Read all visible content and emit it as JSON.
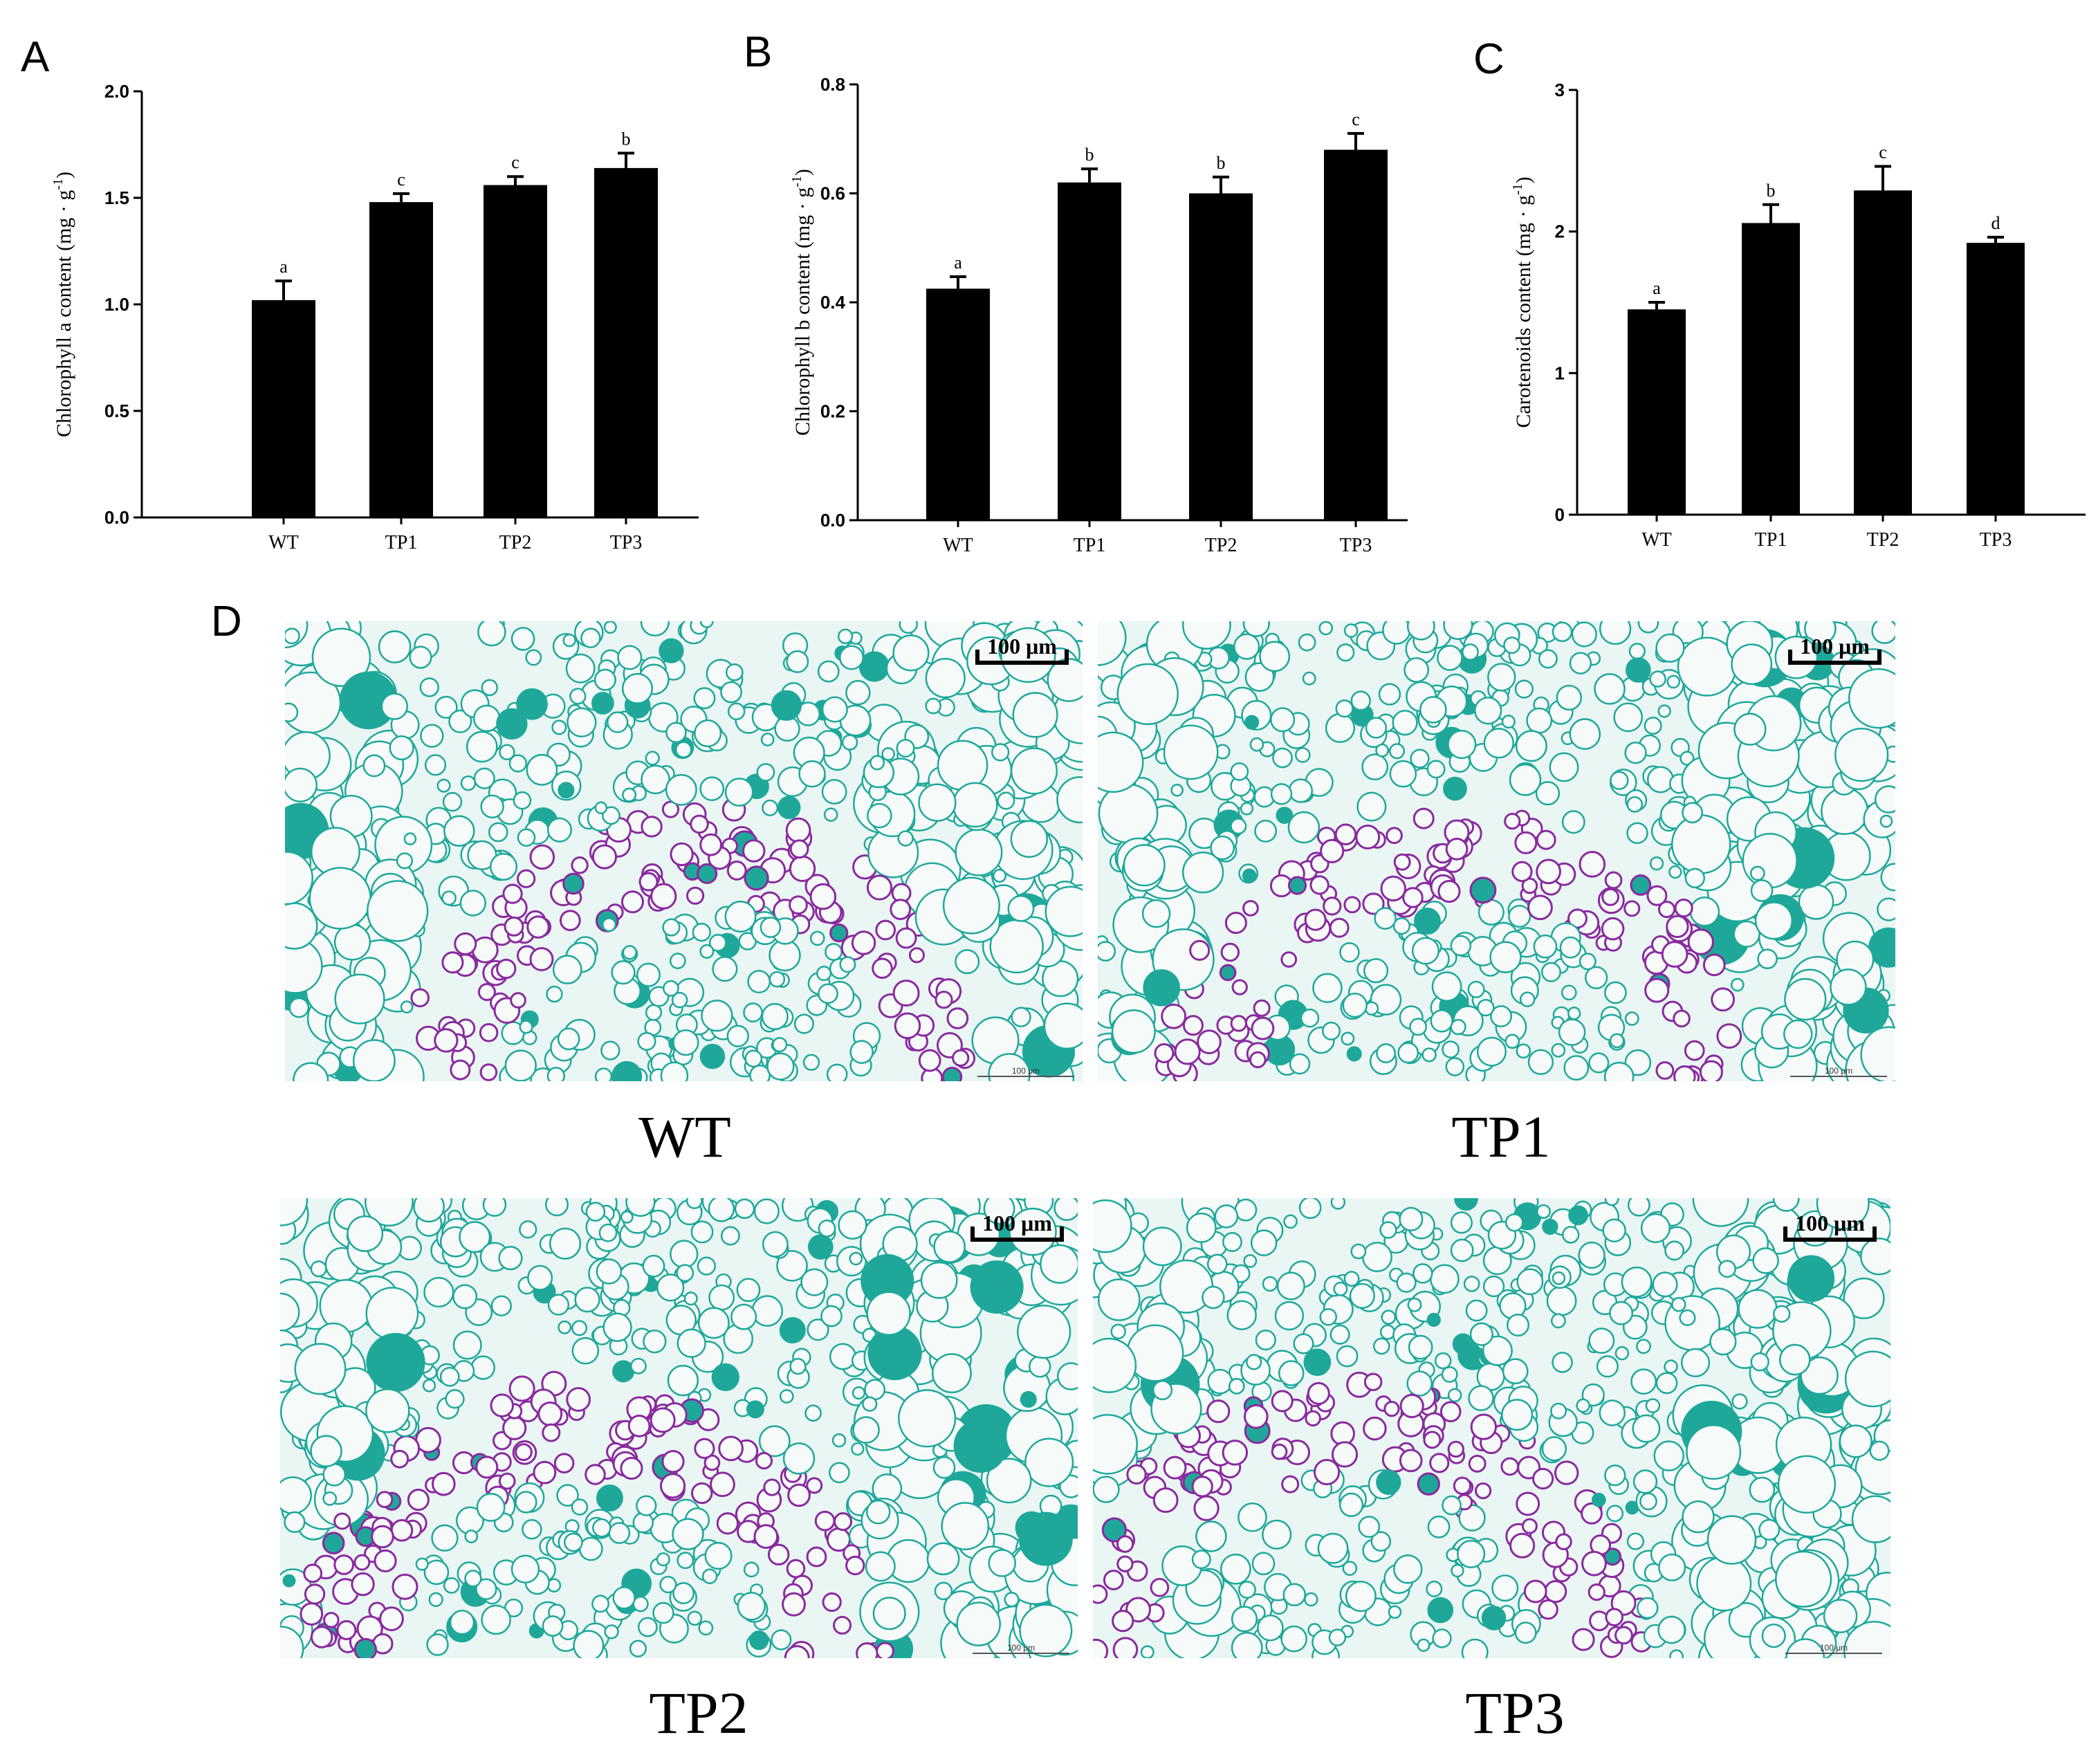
{
  "panels": {
    "a": "A",
    "b": "B",
    "c": "C",
    "d": "D"
  },
  "chart_data": [
    {
      "type": "bar",
      "panel": "A",
      "categories": [
        "WT",
        "TP1",
        "TP2",
        "TP3"
      ],
      "values": [
        1.02,
        1.48,
        1.56,
        1.64
      ],
      "errors": [
        0.09,
        0.04,
        0.04,
        0.07
      ],
      "significance": [
        "a",
        "c",
        "c",
        "b"
      ],
      "ylabel": "Chlorophyll a content (mg · g-1)",
      "ylim": [
        0,
        2.0
      ],
      "yticks": [
        "0.0",
        "0.5",
        "1.0",
        "1.5",
        "2.0"
      ],
      "bar_color": "#000000"
    },
    {
      "type": "bar",
      "panel": "B",
      "categories": [
        "WT",
        "TP1",
        "TP2",
        "TP3"
      ],
      "values": [
        0.425,
        0.62,
        0.6,
        0.68
      ],
      "errors": [
        0.022,
        0.025,
        0.03,
        0.03
      ],
      "significance": [
        "a",
        "b",
        "b",
        "c"
      ],
      "ylabel": "Chlorophyll b content (mg · g-1)",
      "ylim": [
        0,
        0.8
      ],
      "yticks": [
        "0.0",
        "0.2",
        "0.4",
        "0.6",
        "0.8"
      ],
      "bar_color": "#000000"
    },
    {
      "type": "bar",
      "panel": "C",
      "categories": [
        "WT",
        "TP1",
        "TP2",
        "TP3"
      ],
      "values": [
        1.45,
        2.06,
        2.29,
        1.92
      ],
      "errors": [
        0.05,
        0.13,
        0.17,
        0.04
      ],
      "significance": [
        "a",
        "b",
        "c",
        "d"
      ],
      "ylabel": "Carotenoids content (mg · g-1)",
      "ylim": [
        0,
        3
      ],
      "yticks": [
        "0",
        "1",
        "2",
        "3"
      ],
      "bar_color": "#000000"
    }
  ],
  "micrographs": [
    {
      "label": "WT",
      "scale_text": "100 μm",
      "small_scale_text": "100 μm"
    },
    {
      "label": "TP1",
      "scale_text": "100 μm",
      "small_scale_text": "100 μm"
    },
    {
      "label": "TP2",
      "scale_text": "100 μm",
      "small_scale_text": "100 μm"
    },
    {
      "label": "TP3",
      "scale_text": "100 μm",
      "small_scale_text": "100 μm"
    }
  ],
  "colors": {
    "tissue_teal": "#1fa89a",
    "xylem_purple": "#8a2a9e",
    "cell_fill": "#f6fbfa"
  }
}
